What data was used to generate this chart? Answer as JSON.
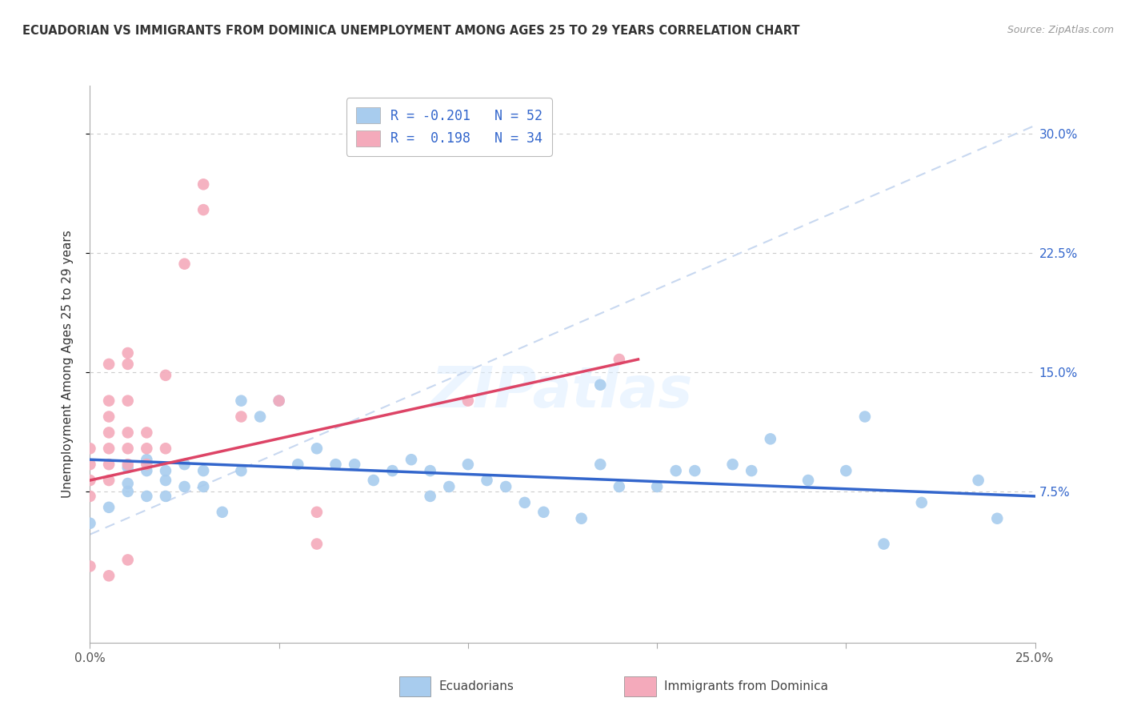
{
  "title": "ECUADORIAN VS IMMIGRANTS FROM DOMINICA UNEMPLOYMENT AMONG AGES 25 TO 29 YEARS CORRELATION CHART",
  "source": "Source: ZipAtlas.com",
  "ylabel": "Unemployment Among Ages 25 to 29 years",
  "legend_entry1": "R = -0.201   N = 52",
  "legend_entry2": "R =  0.198   N = 34",
  "legend_label1": "Ecuadorians",
  "legend_label2": "Immigrants from Dominica",
  "xlim": [
    0.0,
    0.25
  ],
  "ylim": [
    -0.02,
    0.33
  ],
  "xticks": [
    0.0,
    0.05,
    0.1,
    0.15,
    0.2,
    0.25
  ],
  "xticklabels": [
    "0.0%",
    "",
    "",
    "",
    "",
    "25.0%"
  ],
  "yticks": [
    0.075,
    0.15,
    0.225,
    0.3
  ],
  "yticklabels": [
    "7.5%",
    "15.0%",
    "22.5%",
    "30.0%"
  ],
  "blue_color": "#a8ccee",
  "pink_color": "#f4aabb",
  "blue_line_color": "#3366cc",
  "pink_line_color": "#dd4466",
  "dashed_color": "#c8d8f0",
  "background_color": "#ffffff",
  "grid_color": "#cccccc",
  "blue_scatter": [
    [
      0.0,
      0.055
    ],
    [
      0.005,
      0.065
    ],
    [
      0.01,
      0.08
    ],
    [
      0.01,
      0.075
    ],
    [
      0.01,
      0.09
    ],
    [
      0.015,
      0.088
    ],
    [
      0.015,
      0.095
    ],
    [
      0.015,
      0.072
    ],
    [
      0.02,
      0.082
    ],
    [
      0.02,
      0.088
    ],
    [
      0.02,
      0.072
    ],
    [
      0.025,
      0.092
    ],
    [
      0.025,
      0.078
    ],
    [
      0.03,
      0.078
    ],
    [
      0.03,
      0.088
    ],
    [
      0.035,
      0.062
    ],
    [
      0.04,
      0.132
    ],
    [
      0.04,
      0.088
    ],
    [
      0.045,
      0.122
    ],
    [
      0.05,
      0.132
    ],
    [
      0.055,
      0.092
    ],
    [
      0.06,
      0.102
    ],
    [
      0.065,
      0.092
    ],
    [
      0.07,
      0.092
    ],
    [
      0.075,
      0.082
    ],
    [
      0.08,
      0.088
    ],
    [
      0.085,
      0.095
    ],
    [
      0.09,
      0.088
    ],
    [
      0.09,
      0.072
    ],
    [
      0.095,
      0.078
    ],
    [
      0.1,
      0.092
    ],
    [
      0.105,
      0.082
    ],
    [
      0.11,
      0.078
    ],
    [
      0.115,
      0.068
    ],
    [
      0.12,
      0.062
    ],
    [
      0.13,
      0.058
    ],
    [
      0.135,
      0.142
    ],
    [
      0.135,
      0.092
    ],
    [
      0.14,
      0.078
    ],
    [
      0.15,
      0.078
    ],
    [
      0.155,
      0.088
    ],
    [
      0.16,
      0.088
    ],
    [
      0.17,
      0.092
    ],
    [
      0.175,
      0.088
    ],
    [
      0.18,
      0.108
    ],
    [
      0.19,
      0.082
    ],
    [
      0.2,
      0.088
    ],
    [
      0.205,
      0.122
    ],
    [
      0.21,
      0.042
    ],
    [
      0.22,
      0.068
    ],
    [
      0.235,
      0.082
    ],
    [
      0.24,
      0.058
    ]
  ],
  "pink_scatter": [
    [
      0.0,
      0.072
    ],
    [
      0.0,
      0.082
    ],
    [
      0.0,
      0.092
    ],
    [
      0.0,
      0.102
    ],
    [
      0.005,
      0.082
    ],
    [
      0.005,
      0.092
    ],
    [
      0.005,
      0.102
    ],
    [
      0.005,
      0.112
    ],
    [
      0.005,
      0.122
    ],
    [
      0.005,
      0.132
    ],
    [
      0.005,
      0.155
    ],
    [
      0.01,
      0.092
    ],
    [
      0.01,
      0.102
    ],
    [
      0.01,
      0.112
    ],
    [
      0.01,
      0.132
    ],
    [
      0.01,
      0.155
    ],
    [
      0.01,
      0.162
    ],
    [
      0.015,
      0.092
    ],
    [
      0.015,
      0.102
    ],
    [
      0.015,
      0.112
    ],
    [
      0.02,
      0.102
    ],
    [
      0.02,
      0.148
    ],
    [
      0.025,
      0.218
    ],
    [
      0.03,
      0.252
    ],
    [
      0.03,
      0.268
    ],
    [
      0.04,
      0.122
    ],
    [
      0.05,
      0.132
    ],
    [
      0.06,
      0.042
    ],
    [
      0.06,
      0.062
    ],
    [
      0.1,
      0.132
    ],
    [
      0.14,
      0.158
    ],
    [
      0.0,
      0.028
    ],
    [
      0.005,
      0.022
    ],
    [
      0.01,
      0.032
    ]
  ],
  "blue_trend_x": [
    0.0,
    0.25
  ],
  "blue_trend_y": [
    0.095,
    0.072
  ],
  "pink_trend_x": [
    0.0,
    0.145
  ],
  "pink_trend_y": [
    0.082,
    0.158
  ],
  "dashed_trend_x": [
    0.0,
    0.25
  ],
  "dashed_trend_y": [
    0.048,
    0.305
  ]
}
